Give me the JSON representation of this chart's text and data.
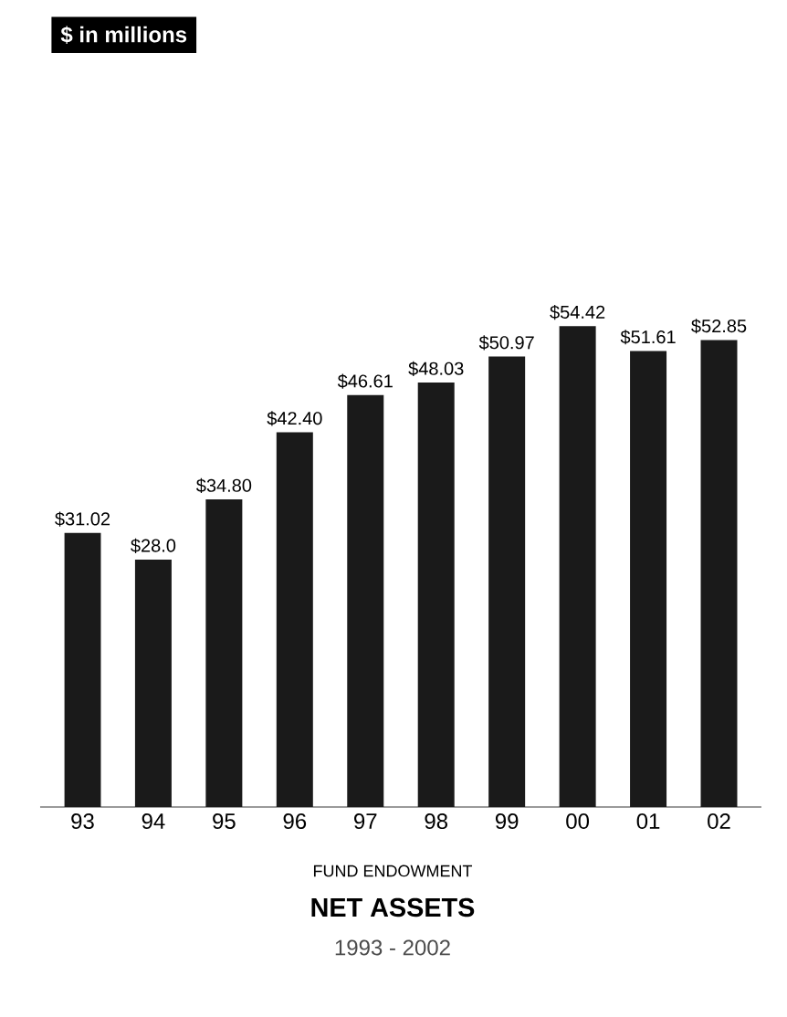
{
  "chart_data": {
    "type": "bar",
    "title": "NET ASSETS",
    "subtitle": "1993 - 2002",
    "annotations": [
      "$ in millions",
      "FUND ENDOWMENT"
    ],
    "categories": [
      "93",
      "94",
      "95",
      "96",
      "97",
      "98",
      "99",
      "00",
      "01",
      "02"
    ],
    "values": [
      31.02,
      28.0,
      34.8,
      42.4,
      46.61,
      48.03,
      50.97,
      54.42,
      51.61,
      52.85
    ],
    "value_labels": [
      "$31.02",
      "$28.0",
      "$34.80",
      "$42.40",
      "$46.61",
      "$48.03",
      "$50.97",
      "$54.42",
      "$51.61",
      "$52.85"
    ],
    "color": "#1a1a1a"
  }
}
